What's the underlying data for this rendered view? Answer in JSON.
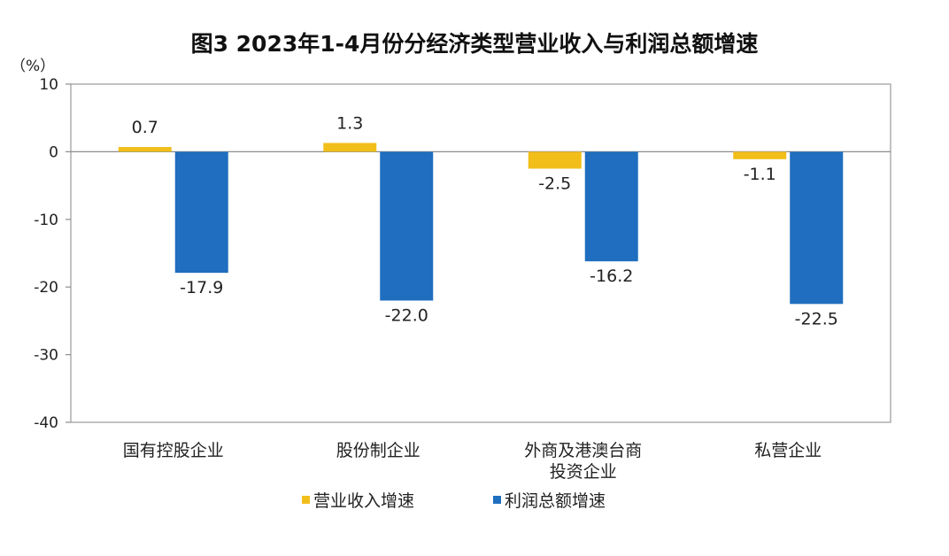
{
  "chart_data": {
    "type": "bar",
    "title": "图3  2023年1-4月份分经济类型营业收入与利润总额增速",
    "ylabel": "（%）",
    "ylim": [
      -40,
      10
    ],
    "yticks": [
      10,
      0,
      -10,
      -20,
      -30,
      -40
    ],
    "categories": [
      [
        "国有控股企业"
      ],
      [
        "股份制企业"
      ],
      [
        "外商及港澳台商",
        "投资企业"
      ],
      [
        "私营企业"
      ]
    ],
    "series": [
      {
        "name": "营业收入增速",
        "color": "#F2BE1A",
        "values": [
          0.7,
          1.3,
          -2.5,
          -1.1
        ],
        "labels": [
          "0.7",
          "1.3",
          "-2.5",
          "-1.1"
        ]
      },
      {
        "name": "利润总额增速",
        "color": "#1F6EBF",
        "values": [
          -17.9,
          -22.0,
          -16.2,
          -22.5
        ],
        "labels": [
          "-17.9",
          "-22.0",
          "-16.2",
          "-22.5"
        ]
      }
    ],
    "grid": false,
    "legend": "bottom"
  }
}
